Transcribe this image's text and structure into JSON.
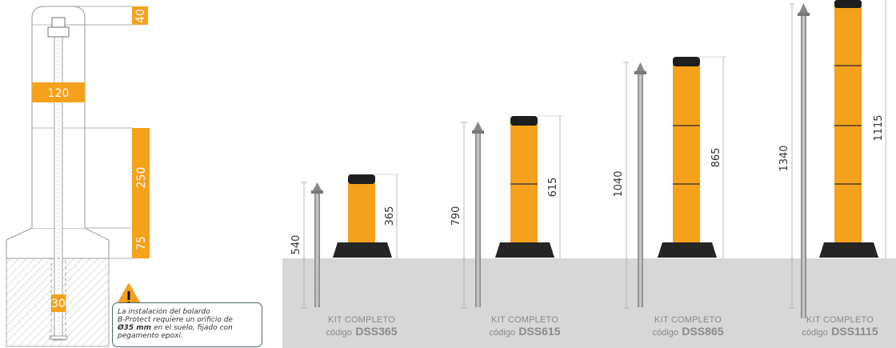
{
  "detail": {
    "dims": {
      "top": "40",
      "mid": "120",
      "body": "250",
      "base": "75",
      "anchor": "30"
    },
    "note": {
      "line1": "La instalación del bolardo",
      "line2": "B-Protect requiere un orificio de",
      "line3_bold": "Ø35 mm",
      "line3_rest": " en el suelo, fijado con",
      "line4": "pegamento epoxi."
    },
    "warning_icon": "warning-triangle-icon"
  },
  "kits": [
    {
      "anchor_len": "540",
      "height": "365",
      "label": "KIT COMPLETO",
      "prefix": "código",
      "code": "DSS365"
    },
    {
      "anchor_len": "790",
      "height": "615",
      "label": "KIT COMPLETO",
      "prefix": "código",
      "code": "DSS615"
    },
    {
      "anchor_len": "1040",
      "height": "865",
      "label": "KIT COMPLETO",
      "prefix": "código",
      "code": "DSS865"
    },
    {
      "anchor_len": "1340",
      "height": "1115",
      "label": "KIT COMPLETO",
      "prefix": "código",
      "code": "DSS1115"
    }
  ],
  "colors": {
    "orange": "#f5a11c",
    "black": "#1e1e1e",
    "ground": "#d7d7d7",
    "steel": "#9a9a9a"
  }
}
